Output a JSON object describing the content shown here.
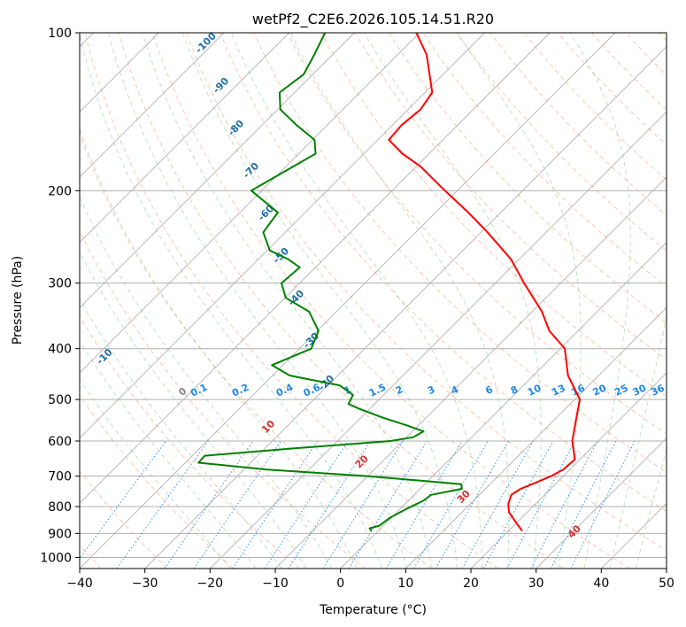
{
  "chart_data": {
    "type": "line",
    "title": "wetPf2_C2E6.2026.105.14.51.R20",
    "xlabel": "Temperature (°C)",
    "ylabel": "Pressure (hPa)",
    "xlim": [
      -40,
      50
    ],
    "ylim": [
      1050,
      100
    ],
    "y_scale": "log",
    "x_ticks": [
      -40,
      -30,
      -20,
      -10,
      0,
      10,
      20,
      30,
      40,
      50
    ],
    "y_ticks": [
      100,
      200,
      300,
      400,
      500,
      600,
      700,
      800,
      900,
      1000
    ],
    "grid": true,
    "background": {
      "dry_adiabats": "dashed light red",
      "moist_adiabats": "dashed light green",
      "isotherms": "solid gray (skewed)",
      "mixing_ratio_lines": "dotted blue"
    },
    "dry_adiabat_labels": [
      "-100",
      "-90",
      "-80",
      "-70",
      "-60",
      "-50",
      "-40",
      "-30",
      "-20",
      "-10",
      "0",
      "10",
      "20",
      "30",
      "40"
    ],
    "mixing_ratio_labels": [
      "0.1",
      "0.2",
      "0.4",
      "0.6",
      "1",
      "1.5",
      "2",
      "3",
      "4",
      "6",
      "8",
      "10",
      "13",
      "16",
      "20",
      "25",
      "30",
      "36"
    ],
    "mixing_ratio_values": [
      0.1,
      0.2,
      0.4,
      0.6,
      1,
      1.5,
      2,
      3,
      4,
      6,
      8,
      10,
      13,
      16,
      20,
      25,
      30,
      36
    ],
    "series": [
      {
        "color": "#ff0000",
        "p": [
          890,
          860,
          820,
          790,
          760,
          740,
          720,
          700,
          680,
          650,
          600,
          550,
          500,
          450,
          400,
          370,
          340,
          300,
          270,
          240,
          220,
          200,
          180,
          170,
          160,
          150,
          140,
          130,
          120,
          110,
          100
        ],
        "t": [
          22.1,
          20.0,
          17.2,
          15.8,
          14.9,
          15.4,
          16.8,
          18.1,
          19.0,
          19.2,
          16.0,
          13.5,
          10.8,
          5.3,
          0.7,
          -4.4,
          -8.5,
          -15.6,
          -21.3,
          -29.0,
          -35.0,
          -41.9,
          -49.3,
          -54.1,
          -58.3,
          -58.6,
          -58.1,
          -58.9,
          -62.1,
          -65.6,
          -70.5
        ]
      },
      {
        "color": "#008000",
        "p": [
          890,
          880,
          870,
          840,
          810,
          780,
          760,
          740,
          725,
          720,
          700,
          680,
          660,
          640,
          620,
          600,
          590,
          575,
          560,
          540,
          520,
          510,
          490,
          470,
          450,
          430,
          400,
          370,
          340,
          320,
          300,
          280,
          270,
          260,
          240,
          220,
          200,
          185,
          170,
          160,
          150,
          140,
          130,
          120,
          110,
          100
        ],
        "t": [
          -1.0,
          -1.7,
          -0.6,
          -0.2,
          0.9,
          2.3,
          2.6,
          6.4,
          5.6,
          2.5,
          -9.9,
          -26.4,
          -38.0,
          -38.1,
          -25.7,
          -11.9,
          -9.0,
          -8.3,
          -11.8,
          -17.0,
          -21.8,
          -24.0,
          -24.7,
          -28.2,
          -37.4,
          -41.7,
          -38.2,
          -39.8,
          -44.2,
          -49.9,
          -52.8,
          -52.4,
          -55.5,
          -59.6,
          -63.4,
          -64.2,
          -71.6,
          -69.6,
          -67.4,
          -69.7,
          -74.7,
          -79.6,
          -82.3,
          -81.4,
          -82.8,
          -84.5
        ]
      }
    ]
  }
}
